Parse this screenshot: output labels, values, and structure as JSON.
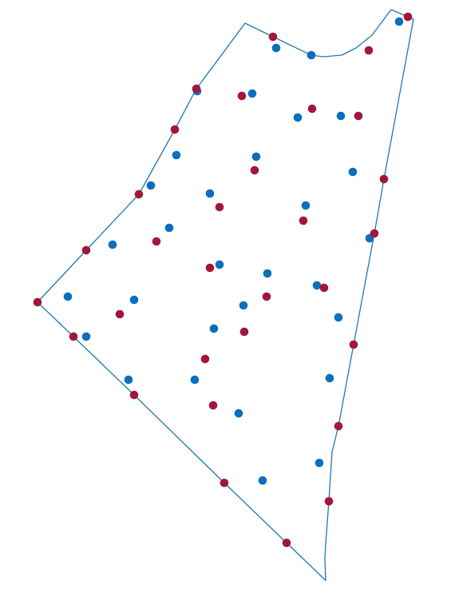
{
  "style": {
    "boundary_color": "#1f77b4",
    "blue_point_color": "#0a6fbf",
    "red_point_color": "#a3163a",
    "background": "#ffffff"
  },
  "map": {
    "type": "point-scatter-over-polygon",
    "legend": "none",
    "axes": "none",
    "series": [
      {
        "color_key": "blue_point_color",
        "count": 29
      },
      {
        "color_key": "red_point_color",
        "count": 33
      }
    ]
  }
}
